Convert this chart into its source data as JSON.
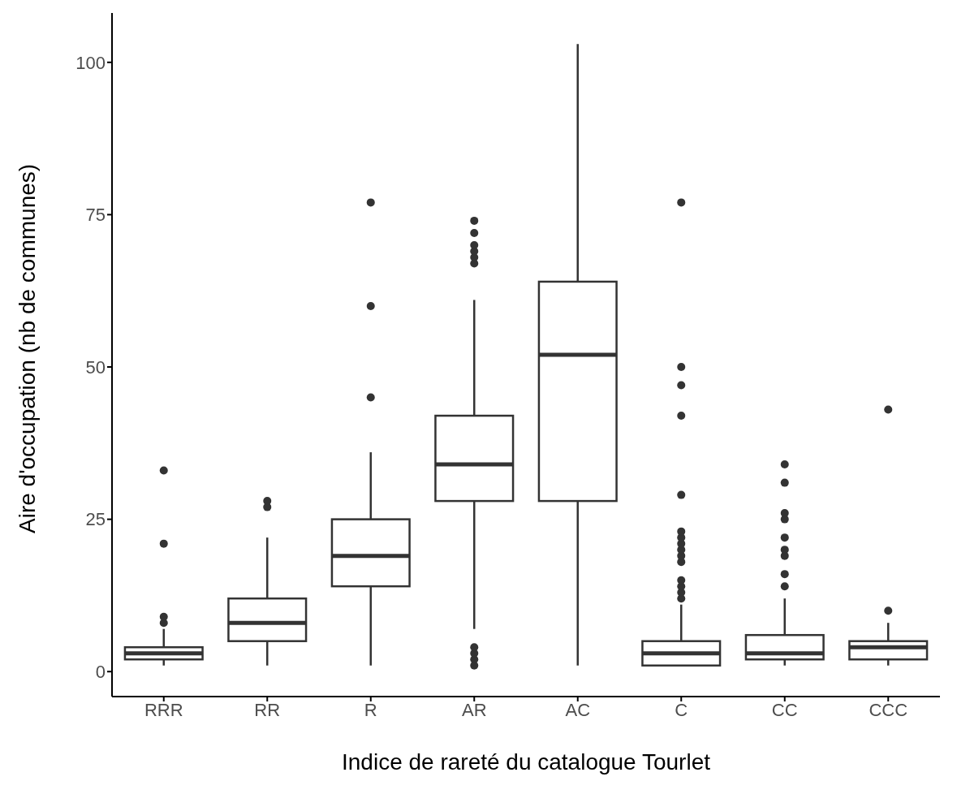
{
  "chart_data": {
    "type": "box",
    "xlabel": "Indice de rareté du catalogue Tourlet",
    "ylabel": "Aire d'occupation (nb de communes)",
    "categories": [
      "RRR",
      "RR",
      "R",
      "AR",
      "AC",
      "C",
      "CC",
      "CCC"
    ],
    "color": "#333333",
    "ylim": [
      -4.1,
      108.1
    ],
    "yticks": [
      0,
      25,
      50,
      75,
      100
    ],
    "grid": false,
    "boxes": [
      {
        "low": 1,
        "q1": 2,
        "median": 3,
        "q3": 4,
        "high": 7,
        "outliers": [
          8,
          9,
          21,
          33
        ]
      },
      {
        "low": 1,
        "q1": 5,
        "median": 8,
        "q3": 12,
        "high": 22,
        "outliers": [
          27,
          28
        ]
      },
      {
        "low": 1,
        "q1": 14,
        "median": 19,
        "q3": 25,
        "high": 36,
        "outliers": [
          45,
          60,
          77
        ]
      },
      {
        "low": 7,
        "q1": 28,
        "median": 34,
        "q3": 42,
        "high": 61,
        "outliers": [
          1,
          2,
          3,
          4,
          67,
          68,
          69,
          70,
          72,
          74
        ]
      },
      {
        "low": 1,
        "q1": 28,
        "median": 52,
        "q3": 64,
        "high": 103
      },
      {
        "low": 1,
        "q1": 1,
        "median": 3,
        "q3": 5,
        "high": 11,
        "outliers": [
          12,
          13,
          14,
          15,
          18,
          19,
          20,
          21,
          22,
          23,
          29,
          42,
          47,
          50,
          77
        ]
      },
      {
        "low": 1,
        "q1": 2,
        "median": 3,
        "q3": 6,
        "high": 12,
        "outliers": [
          14,
          16,
          19,
          20,
          22,
          25,
          26,
          31,
          34
        ]
      },
      {
        "low": 1,
        "q1": 2,
        "median": 4,
        "q3": 5,
        "high": 8,
        "outliers": [
          10,
          43
        ]
      }
    ]
  }
}
